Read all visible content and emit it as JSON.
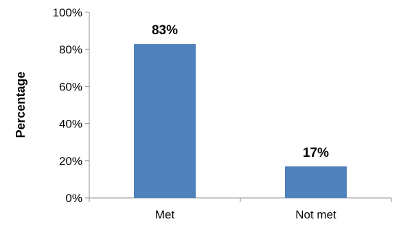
{
  "chart_data": {
    "type": "bar",
    "title": "",
    "xlabel": "",
    "ylabel": "Percentage",
    "categories": [
      "Met",
      "Not met"
    ],
    "values": [
      83,
      17
    ],
    "data_labels": [
      "83%",
      "17%"
    ],
    "ylim": [
      0,
      100
    ],
    "yticks": [
      0,
      20,
      40,
      60,
      80,
      100
    ],
    "ytick_labels": [
      "0%",
      "20%",
      "40%",
      "60%",
      "80%",
      "100%"
    ],
    "grid": false,
    "legend": "none",
    "bar_color": "#4f81bd"
  }
}
